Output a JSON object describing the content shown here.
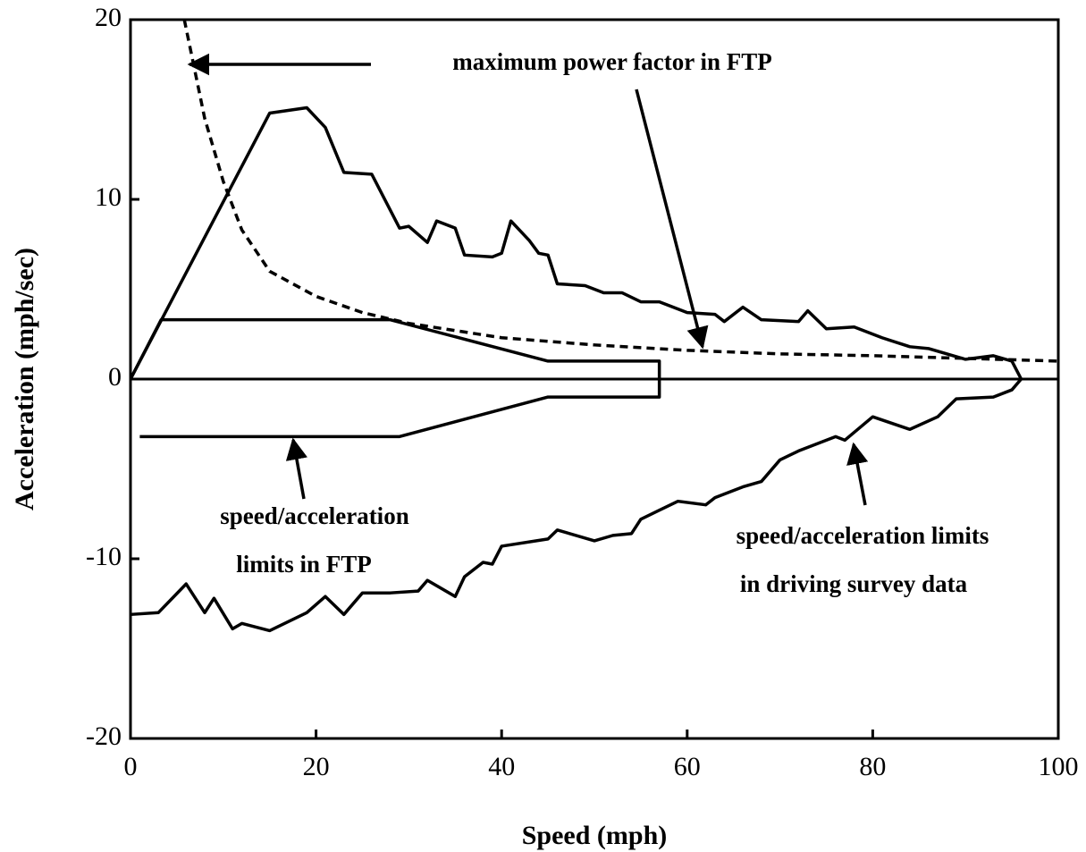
{
  "chart_data": {
    "type": "line",
    "xlabel": "Speed (mph)",
    "ylabel": "Acceleration (mph/sec)",
    "xlim": [
      0,
      100
    ],
    "ylim": [
      -20,
      20
    ],
    "xticks": [
      0,
      20,
      40,
      60,
      80,
      100
    ],
    "yticks": [
      -20,
      -10,
      0,
      10,
      20
    ],
    "zero_line": true,
    "annotations": [
      [
        "maximum power factor in FTP"
      ],
      [
        "speed/acceleration",
        "limits in FTP"
      ],
      [
        "speed/acceleration limits",
        "in driving survey data"
      ]
    ],
    "series": [
      {
        "color": "#000000",
        "dashed": true,
        "x": [
          5.8,
          7,
          8,
          10,
          12,
          15,
          20,
          25,
          30,
          40,
          50,
          60,
          70,
          80,
          90,
          100
        ],
        "values": [
          20,
          17,
          14.5,
          11,
          8.3,
          6,
          4.6,
          3.7,
          3.1,
          2.3,
          1.9,
          1.6,
          1.4,
          1.3,
          1.15,
          1.0
        ]
      },
      {
        "color": "#000000",
        "dashed": false,
        "x": [
          0,
          15,
          19,
          21,
          23,
          26,
          29,
          30,
          32,
          33,
          35,
          36,
          39,
          40,
          41,
          43,
          44,
          45,
          46,
          49,
          51,
          53,
          55,
          57,
          60,
          63,
          64,
          66,
          68,
          72,
          73,
          75,
          78,
          81,
          84,
          86,
          90,
          93,
          95,
          96
        ],
        "values": [
          0,
          14.8,
          15.1,
          14,
          11.5,
          11.4,
          8.4,
          8.5,
          7.6,
          8.8,
          8.4,
          6.9,
          6.8,
          7.0,
          8.8,
          7.7,
          7.0,
          6.9,
          5.3,
          5.2,
          4.8,
          4.8,
          4.3,
          4.3,
          3.7,
          3.6,
          3.2,
          4.0,
          3.3,
          3.2,
          3.8,
          2.8,
          2.9,
          2.3,
          1.8,
          1.7,
          1.1,
          1.3,
          1.0,
          0
        ]
      },
      {
        "color": "#000000",
        "dashed": false,
        "x": [
          0,
          3,
          6,
          8,
          9,
          11,
          12,
          15,
          19,
          21,
          23,
          25,
          28,
          31,
          32,
          35,
          36,
          38,
          39,
          40,
          45,
          46,
          50,
          52,
          54,
          55,
          57,
          59,
          62,
          63,
          66,
          68,
          70,
          72,
          75,
          76,
          77,
          80,
          84,
          87,
          89,
          93,
          95,
          96
        ],
        "values": [
          -13.1,
          -13,
          -11.4,
          -13,
          -12.2,
          -13.9,
          -13.6,
          -14,
          -13,
          -12.1,
          -13.1,
          -11.9,
          -11.9,
          -11.8,
          -11.2,
          -12.1,
          -11,
          -10.2,
          -10.3,
          -9.3,
          -8.9,
          -8.4,
          -9,
          -8.7,
          -8.6,
          -7.8,
          -7.3,
          -6.8,
          -7.0,
          -6.6,
          -6.0,
          -5.7,
          -4.5,
          -4.0,
          -3.4,
          -3.2,
          -3.4,
          -2.1,
          -2.8,
          -2.1,
          -1.1,
          -1.0,
          -0.6,
          0
        ]
      },
      {
        "color": "#000000",
        "dashed": false,
        "x": [
          0,
          3.3,
          28,
          45,
          57,
          57,
          45,
          29,
          1
        ],
        "values": [
          0,
          3.3,
          3.3,
          1.0,
          1.0,
          -1.0,
          -1.0,
          -3.2,
          -3.2
        ]
      }
    ]
  }
}
